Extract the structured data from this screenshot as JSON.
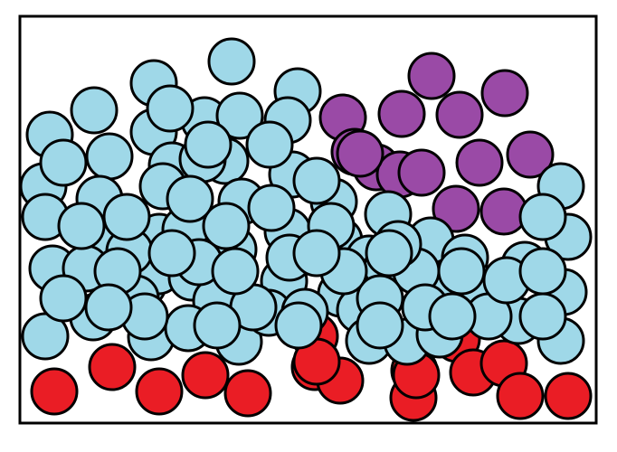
{
  "colors": {
    "background": "#ffffff",
    "outline": "#000000",
    "light-blue": "#9fd8e8",
    "purple": "#9a4aa6",
    "red": "#ea1d25"
  },
  "particle_counts": {
    "light-blue": 97,
    "purple": 14,
    "red": 17
  }
}
